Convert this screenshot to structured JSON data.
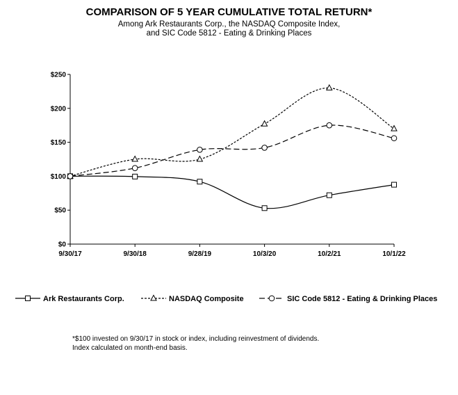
{
  "chart_data": {
    "type": "line",
    "title": "COMPARISON OF 5 YEAR CUMULATIVE TOTAL RETURN*",
    "subtitle_lines": [
      "Among Ark Restaurants Corp., the NASDAQ  Composite Index,",
      "and SIC Code 5812 - Eating & Drinking Places"
    ],
    "categories": [
      "9/30/17",
      "9/30/18",
      "9/28/19",
      "10/3/20",
      "10/2/21",
      "10/1/22"
    ],
    "y_ticks": [
      "$0",
      "$50",
      "$100",
      "$150",
      "$200",
      "$250"
    ],
    "ylim": [
      0,
      250
    ],
    "xlabel": "",
    "ylabel": "",
    "legend_position": "bottom",
    "series": [
      {
        "name": "Ark Restaurants Corp.",
        "marker": "square",
        "dash": "solid",
        "values": [
          100,
          99.5,
          92,
          53,
          72,
          87.5
        ]
      },
      {
        "name": "NASDAQ Composite",
        "marker": "triangle",
        "dash": "short-dash",
        "values": [
          100,
          125,
          125,
          177,
          230,
          170
        ]
      },
      {
        "name": "SIC Code 5812 - Eating & Drinking Places",
        "marker": "circle",
        "dash": "long-dash",
        "values": [
          100,
          112,
          139,
          142,
          175,
          156
        ]
      }
    ],
    "footnote_lines": [
      "*$100 invested on 9/30/17 in stock or index, including reinvestment of dividends.",
      "Index calculated on month-end basis."
    ]
  }
}
